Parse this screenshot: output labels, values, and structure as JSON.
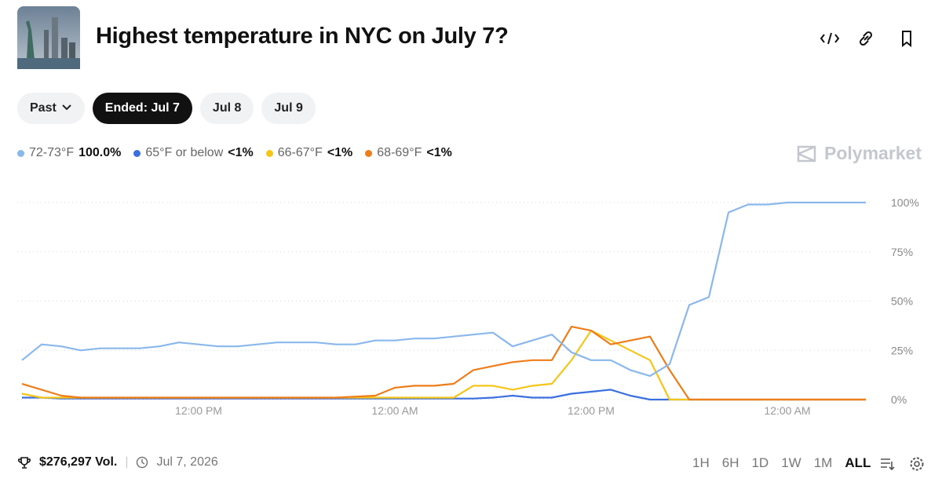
{
  "header": {
    "title": "Highest temperature in NYC on July 7?"
  },
  "tabs": [
    "Past",
    "Ended: Jul 7",
    "Jul 8",
    "Jul 9"
  ],
  "brand": "Polymarket",
  "footer": {
    "volume": "$276,297 Vol.",
    "date": "Jul 7, 2026",
    "ranges": [
      "1H",
      "6H",
      "1D",
      "1W",
      "1M",
      "ALL"
    ]
  },
  "chart_data": {
    "type": "line",
    "categories": [
      null,
      null,
      null,
      null,
      null,
      null,
      null,
      null,
      null,
      "12:00 PM",
      null,
      null,
      null,
      null,
      null,
      null,
      null,
      null,
      null,
      "12:00 AM",
      null,
      null,
      null,
      null,
      null,
      null,
      null,
      null,
      null,
      "12:00 PM",
      null,
      null,
      null,
      null,
      null,
      null,
      null,
      null,
      null,
      "12:00 AM",
      null,
      null,
      null,
      null
    ],
    "ylim": [
      0,
      100
    ],
    "yticks": [
      {
        "value": 0,
        "label": "0%"
      },
      {
        "value": 25,
        "label": "25%"
      },
      {
        "value": 50,
        "label": "50%"
      },
      {
        "value": 75,
        "label": "75%"
      },
      {
        "value": 100,
        "label": "100%"
      }
    ],
    "grid": true,
    "series": [
      {
        "name": "72-73°F",
        "legend_value": "100.0%",
        "color": "#8ab8ec",
        "values": [
          20,
          28,
          27,
          25,
          26,
          26,
          26,
          27,
          29,
          28,
          27,
          27,
          28,
          29,
          29,
          29,
          28,
          28,
          30,
          30,
          31,
          31,
          32,
          33,
          34,
          27,
          30,
          33,
          24,
          20,
          20,
          15,
          12,
          18,
          48,
          52,
          95,
          99,
          99,
          100,
          100,
          100,
          100,
          100
        ]
      },
      {
        "name": "65°F or below",
        "legend_value": "<1%",
        "color": "#3b6fe0",
        "values": [
          1,
          1,
          0.5,
          0.5,
          0.5,
          0.5,
          0.5,
          0.5,
          0.5,
          0.5,
          0.5,
          0.5,
          0.5,
          0.5,
          0.5,
          0.5,
          0.5,
          0.5,
          0.5,
          0.5,
          0.5,
          0.5,
          0.5,
          0.5,
          1,
          2,
          1,
          1,
          3,
          4,
          5,
          2,
          0,
          0,
          0,
          0,
          0,
          0,
          0,
          0,
          0,
          0,
          0,
          0
        ]
      },
      {
        "name": "66-67°F",
        "legend_value": "<1%",
        "color": "#f5c518",
        "values": [
          3,
          1,
          1,
          1,
          1,
          1,
          1,
          1,
          1,
          1,
          1,
          1,
          1,
          1,
          1,
          1,
          1,
          1,
          1,
          1,
          1,
          1,
          1,
          7,
          7,
          5,
          7,
          8,
          20,
          35,
          30,
          25,
          20,
          0,
          0,
          0,
          0,
          0,
          0,
          0,
          0,
          0,
          0,
          0
        ]
      },
      {
        "name": "68-69°F",
        "legend_value": "<1%",
        "color": "#ee7d1a",
        "values": [
          8,
          5,
          2,
          1,
          1,
          1,
          1,
          1,
          1,
          1,
          1,
          1,
          1,
          1,
          1,
          1,
          1,
          1.5,
          2,
          6,
          7,
          7,
          8,
          15,
          17,
          19,
          20,
          20,
          37,
          35,
          28,
          30,
          32,
          15,
          0,
          0,
          0,
          0,
          0,
          0,
          0,
          0,
          0,
          0
        ]
      }
    ]
  }
}
